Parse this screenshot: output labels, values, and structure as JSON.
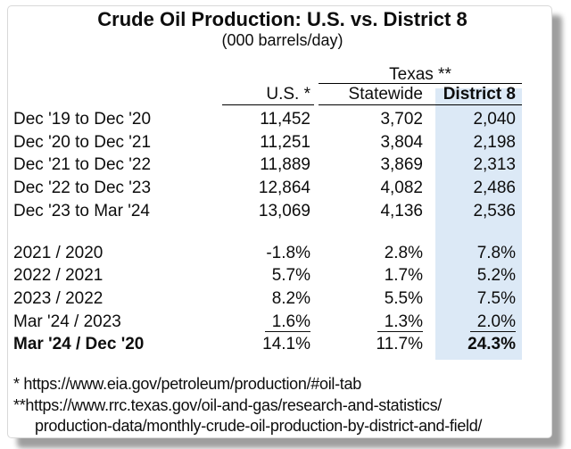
{
  "chart_data": {
    "type": "table",
    "title": "Crude Oil Production: U.S. vs. District 8",
    "subtitle": "(000 barrels/day)",
    "group_header": "Texas **",
    "columns": {
      "us": "U.S. *",
      "statewide": "Statewide",
      "district8": "District 8"
    },
    "production_rows": [
      {
        "label": "Dec '19 to Dec '20",
        "us": "11,452",
        "statewide": "3,702",
        "district8": "2,040"
      },
      {
        "label": "Dec '20 to Dec '21",
        "us": "11,251",
        "statewide": "3,804",
        "district8": "2,198"
      },
      {
        "label": "Dec '21 to Dec '22",
        "us": "11,889",
        "statewide": "3,869",
        "district8": "2,313"
      },
      {
        "label": "Dec '22 to Dec '23",
        "us": "12,864",
        "statewide": "4,082",
        "district8": "2,486"
      },
      {
        "label": "Dec '23 to Mar '24",
        "us": "13,069",
        "statewide": "4,136",
        "district8": "2,536"
      }
    ],
    "pct_change_rows": [
      {
        "label": "2021 / 2020",
        "us": "-1.8%",
        "statewide": "2.8%",
        "district8": "7.8%"
      },
      {
        "label": "2022 / 2021",
        "us": "5.7%",
        "statewide": "1.7%",
        "district8": "5.2%"
      },
      {
        "label": "2023 / 2022",
        "us": "8.2%",
        "statewide": "5.5%",
        "district8": "7.5%"
      },
      {
        "label": "Mar '24 / 2023",
        "us": "1.6%",
        "statewide": "1.3%",
        "district8": "2.0%"
      },
      {
        "label": "Mar '24 / Dec '20",
        "us": "14.1%",
        "statewide": "11.7%",
        "district8": "24.3%"
      }
    ],
    "footnotes": [
      "* https://www.eia.gov/petroleum/production/#oil-tab",
      "**https://www.rrc.texas.gov/oil-and-gas/research-and-statistics/",
      "production-data/monthly-crude-oil-production-by-district-and-field/"
    ],
    "highlight_color": "#dce9f6",
    "layout": {
      "district8_column_highlighted": true,
      "underlined_row": "Mar '24 / 2023",
      "bold_row": "Mar '24 / Dec '20"
    }
  }
}
